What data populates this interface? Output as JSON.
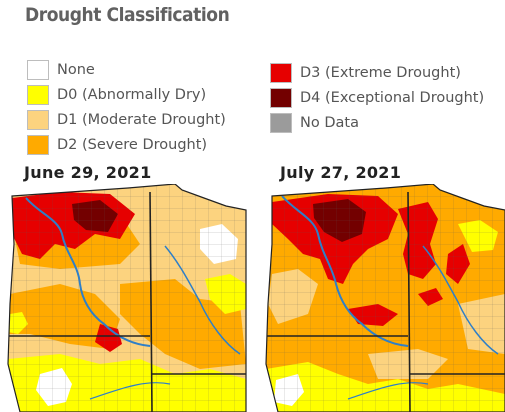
{
  "title": "Drought Classification",
  "legend": [
    {
      "label": "None",
      "color": "#ffffff"
    },
    {
      "label": "D0 (Abnormally Dry)",
      "color": "#ffff00"
    },
    {
      "label": "D1 (Moderate Drought)",
      "color": "#fcd37f"
    },
    {
      "label": "D2 (Severe Drought)",
      "color": "#ffaa00"
    },
    {
      "label": "D3 (Extreme Drought)",
      "color": "#e60000"
    },
    {
      "label": "D4 (Exceptional Drought)",
      "color": "#730000"
    },
    {
      "label": "No Data",
      "color": "#9b9b9b"
    }
  ],
  "maps": [
    {
      "date": "June 29, 2021"
    },
    {
      "date": "July 27, 2021"
    }
  ]
}
